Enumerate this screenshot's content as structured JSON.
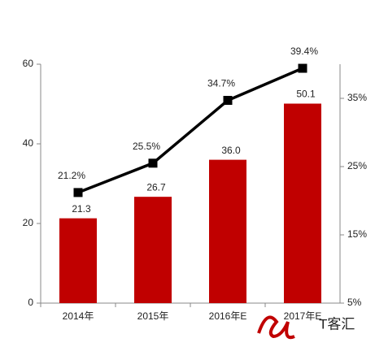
{
  "chart_data": {
    "type": "bar-line",
    "categories": [
      "2014年",
      "2015年",
      "2016年E",
      "2017年E"
    ],
    "series": [
      {
        "type": "bar",
        "color": "#c00000",
        "values": [
          21.3,
          26.7,
          36.0,
          50.1
        ],
        "value_labels": [
          "21.3",
          "26.7",
          "36.0",
          "50.1"
        ]
      },
      {
        "type": "line",
        "axis": "y2",
        "color": "#000000",
        "values": [
          21.2,
          25.5,
          34.7,
          39.4
        ],
        "value_labels": [
          "21.2%",
          "25.5%",
          "34.7%",
          "39.4%"
        ]
      }
    ],
    "ylim": [
      0,
      60
    ],
    "yticks": [
      0,
      20,
      40,
      60
    ],
    "y2lim": [
      5,
      40
    ],
    "y2ticks": [
      {
        "value": 5,
        "label": "5%"
      },
      {
        "value": 15,
        "label": "15%"
      },
      {
        "value": 25,
        "label": "25%"
      },
      {
        "value": 35,
        "label": "35%"
      }
    ],
    "grid": false,
    "watermark": "T客汇"
  }
}
